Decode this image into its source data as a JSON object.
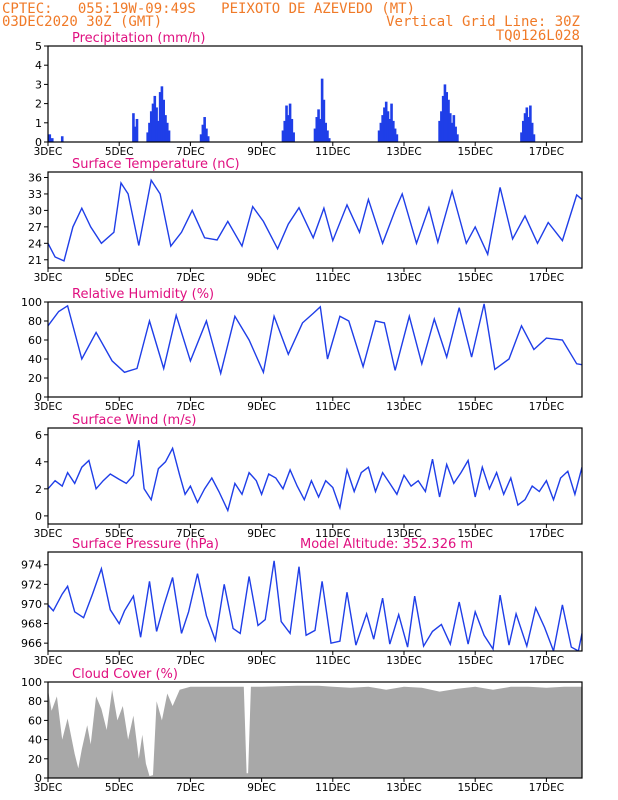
{
  "header": {
    "line1_left": "CPTEC:   055:19W-09:49S   PEIXOTO DE AZEVEDO (MT)",
    "line2_left": "03DEC2020 30Z (GMT)",
    "line2_right": "Vertical Grid Line: 30Z",
    "line3_right": "TQ0126L028"
  },
  "colors": {
    "header": "#f07a28",
    "title": "#e01080",
    "series": "#1f3ee8",
    "cloud": "#a8a8a8",
    "frame": "#000000"
  },
  "x_axis": {
    "start_day": 3,
    "end_day": 18,
    "tick_labels": [
      "3DEC",
      "5DEC",
      "7DEC",
      "9DEC",
      "11DEC",
      "13DEC",
      "15DEC",
      "17DEC"
    ],
    "tick_days": [
      3,
      5,
      7,
      9,
      11,
      13,
      15,
      17
    ]
  },
  "chart_data": [
    {
      "type": "bar",
      "name": "precipitation",
      "title": "Precipitation (mm/h)",
      "ylim": [
        0,
        5
      ],
      "yticks": [
        "0",
        "1",
        "2",
        "3",
        "4",
        "5"
      ],
      "x": [
        3.05,
        3.12,
        3.4,
        5.4,
        5.45,
        5.5,
        5.8,
        5.85,
        5.9,
        5.95,
        6.0,
        6.05,
        6.1,
        6.15,
        6.2,
        6.25,
        6.3,
        6.35,
        6.4,
        7.3,
        7.35,
        7.4,
        7.45,
        7.5,
        9.6,
        9.65,
        9.7,
        9.75,
        9.8,
        9.85,
        9.9,
        10.5,
        10.55,
        10.6,
        10.65,
        10.7,
        10.75,
        10.8,
        10.85,
        10.9,
        12.3,
        12.35,
        12.4,
        12.45,
        12.5,
        12.55,
        12.6,
        12.65,
        12.7,
        12.75,
        12.8,
        14.0,
        14.05,
        14.1,
        14.15,
        14.2,
        14.25,
        14.3,
        14.35,
        14.4,
        14.45,
        14.5,
        16.3,
        16.35,
        16.4,
        16.45,
        16.5,
        16.55,
        16.6,
        16.65
      ],
      "values": [
        0.4,
        0.2,
        0.3,
        1.5,
        0.8,
        1.2,
        0.5,
        1.0,
        1.6,
        2.0,
        2.4,
        1.8,
        1.1,
        2.6,
        2.9,
        2.2,
        1.4,
        1.0,
        0.6,
        0.4,
        0.9,
        1.3,
        0.7,
        0.3,
        0.6,
        1.1,
        1.9,
        1.4,
        2.0,
        1.2,
        0.5,
        0.7,
        1.3,
        1.7,
        1.2,
        3.3,
        2.2,
        1.0,
        0.6,
        0.2,
        0.6,
        1.0,
        1.4,
        1.8,
        2.1,
        1.6,
        1.2,
        2.0,
        1.1,
        0.7,
        0.4,
        1.1,
        1.6,
        2.4,
        3.0,
        2.6,
        2.2,
        1.5,
        1.0,
        1.4,
        0.8,
        0.4,
        0.5,
        1.1,
        1.5,
        1.8,
        1.3,
        1.9,
        1.0,
        0.4
      ]
    },
    {
      "type": "line",
      "name": "surface_temperature",
      "title": "Surface Temperature (nC)",
      "ylim": [
        19.5,
        37
      ],
      "yticks": [
        "21",
        "24",
        "27",
        "30",
        "33",
        "36"
      ],
      "x": [
        3.0,
        3.2,
        3.45,
        3.7,
        3.95,
        4.2,
        4.5,
        4.85,
        5.05,
        5.25,
        5.55,
        5.9,
        6.15,
        6.45,
        6.75,
        7.05,
        7.4,
        7.75,
        8.05,
        8.45,
        8.75,
        9.05,
        9.45,
        9.75,
        10.05,
        10.45,
        10.75,
        11.0,
        11.4,
        11.75,
        12.0,
        12.4,
        12.75,
        12.95,
        13.35,
        13.7,
        13.95,
        14.35,
        14.75,
        15.0,
        15.35,
        15.7,
        16.05,
        16.4,
        16.75,
        17.05,
        17.45,
        17.85,
        18.0
      ],
      "values": [
        24,
        21.5,
        20.8,
        27,
        30.4,
        27,
        24,
        26,
        35,
        33,
        23.6,
        35.5,
        33,
        23.5,
        26,
        30,
        25,
        24.6,
        28,
        23.5,
        30.7,
        28,
        23,
        27.5,
        30.5,
        25,
        30.4,
        24.5,
        31,
        26,
        32,
        24,
        30,
        33,
        24,
        30.5,
        24.2,
        33.5,
        24,
        27,
        22,
        34.2,
        24.8,
        29,
        24,
        27.8,
        24.5,
        32.8,
        32
      ]
    },
    {
      "type": "line",
      "name": "relative_humidity",
      "title": "Relative Humidity (%)",
      "ylim": [
        0,
        100
      ],
      "yticks": [
        "0",
        "20",
        "40",
        "60",
        "80",
        "100"
      ],
      "x": [
        3.0,
        3.3,
        3.55,
        3.95,
        4.35,
        4.8,
        5.15,
        5.5,
        5.85,
        6.25,
        6.6,
        7.0,
        7.45,
        7.85,
        8.25,
        8.65,
        9.05,
        9.35,
        9.75,
        10.15,
        10.45,
        10.65,
        10.85,
        11.2,
        11.45,
        11.85,
        12.2,
        12.45,
        12.75,
        13.15,
        13.5,
        13.85,
        14.2,
        14.55,
        14.9,
        15.25,
        15.55,
        15.95,
        16.3,
        16.65,
        17.0,
        17.45,
        17.85,
        18.0
      ],
      "values": [
        75,
        90,
        96,
        40,
        68,
        38,
        26,
        30,
        80,
        30,
        86,
        38,
        80,
        25,
        85,
        60,
        26,
        85,
        45,
        78,
        88,
        95,
        40,
        85,
        80,
        32,
        80,
        78,
        28,
        85,
        35,
        82,
        42,
        94,
        42,
        98,
        29,
        40,
        75,
        50,
        62,
        60,
        35,
        34
      ]
    },
    {
      "type": "line",
      "name": "surface_wind",
      "title": "Surface Wind (m/s)",
      "ylim": [
        -0.6,
        6.5
      ],
      "yticks": [
        "0",
        "2",
        "4",
        "6"
      ],
      "x": [
        3.0,
        3.2,
        3.4,
        3.55,
        3.75,
        3.95,
        4.15,
        4.35,
        4.55,
        4.75,
        5.0,
        5.2,
        5.4,
        5.55,
        5.7,
        5.9,
        6.1,
        6.3,
        6.5,
        6.7,
        6.85,
        7.0,
        7.2,
        7.4,
        7.6,
        7.8,
        8.05,
        8.25,
        8.45,
        8.65,
        8.85,
        9.0,
        9.2,
        9.4,
        9.6,
        9.8,
        10.0,
        10.2,
        10.4,
        10.6,
        10.8,
        11.0,
        11.2,
        11.4,
        11.6,
        11.8,
        12.0,
        12.2,
        12.4,
        12.6,
        12.8,
        13.0,
        13.2,
        13.4,
        13.6,
        13.8,
        14.0,
        14.2,
        14.4,
        14.6,
        14.8,
        15.0,
        15.2,
        15.4,
        15.6,
        15.8,
        16.0,
        16.2,
        16.4,
        16.6,
        16.8,
        17.0,
        17.2,
        17.4,
        17.6,
        17.8,
        18.0
      ],
      "values": [
        2.0,
        2.6,
        2.2,
        3.2,
        2.4,
        3.6,
        4.1,
        2.0,
        2.6,
        3.1,
        2.7,
        2.4,
        3.0,
        5.6,
        2.0,
        1.2,
        3.5,
        4.0,
        5.0,
        3.0,
        1.6,
        2.2,
        1.0,
        2.0,
        2.8,
        1.8,
        0.4,
        2.4,
        1.6,
        3.2,
        2.6,
        1.6,
        3.1,
        2.8,
        2.0,
        3.4,
        2.2,
        1.2,
        2.6,
        1.4,
        2.6,
        2.1,
        0.6,
        3.4,
        1.8,
        3.2,
        3.6,
        1.8,
        3.2,
        2.4,
        1.6,
        3.0,
        2.2,
        2.6,
        1.8,
        4.2,
        1.4,
        3.8,
        2.4,
        3.2,
        4.1,
        1.4,
        3.6,
        2.0,
        3.2,
        1.6,
        2.8,
        0.8,
        1.2,
        2.2,
        1.8,
        2.6,
        1.2,
        2.8,
        3.3,
        1.6,
        3.6
      ]
    },
    {
      "type": "line",
      "name": "surface_pressure",
      "title": "Surface Pressure (hPa)",
      "annotation": "Model Altitude: 352.326  m",
      "ylim": [
        965.2,
        975.3
      ],
      "yticks": [
        "966",
        "968",
        "970",
        "972",
        "974"
      ],
      "x": [
        3.0,
        3.15,
        3.4,
        3.55,
        3.75,
        4.0,
        4.25,
        4.5,
        4.75,
        5.0,
        5.15,
        5.4,
        5.6,
        5.85,
        6.05,
        6.25,
        6.5,
        6.75,
        6.95,
        7.2,
        7.45,
        7.7,
        7.95,
        8.2,
        8.4,
        8.65,
        8.9,
        9.1,
        9.35,
        9.55,
        9.8,
        10.05,
        10.25,
        10.5,
        10.7,
        10.95,
        11.2,
        11.4,
        11.65,
        11.95,
        12.15,
        12.4,
        12.6,
        12.85,
        13.1,
        13.3,
        13.55,
        13.8,
        14.05,
        14.3,
        14.55,
        14.8,
        15.0,
        15.25,
        15.5,
        15.7,
        15.95,
        16.15,
        16.45,
        16.7,
        16.95,
        17.2,
        17.45,
        17.7,
        17.9,
        18.0
      ],
      "values": [
        969.9,
        969.3,
        971.0,
        971.8,
        969.2,
        968.6,
        971.0,
        973.6,
        969.4,
        968.0,
        969.3,
        970.8,
        966.6,
        972.3,
        967.2,
        969.8,
        972.7,
        967.0,
        969.2,
        973.1,
        968.8,
        966.3,
        972.0,
        967.5,
        967.0,
        972.8,
        967.8,
        968.4,
        974.4,
        968.2,
        967.0,
        973.8,
        966.8,
        967.3,
        972.3,
        966.0,
        966.2,
        971.2,
        965.8,
        969.0,
        966.4,
        970.6,
        965.9,
        968.9,
        965.6,
        970.8,
        965.7,
        967.2,
        967.9,
        965.9,
        970.2,
        965.9,
        969.2,
        966.8,
        965.4,
        970.9,
        965.8,
        969.0,
        965.7,
        969.6,
        967.6,
        965.2,
        969.9,
        965.6,
        965.2,
        967.0
      ]
    },
    {
      "type": "area",
      "name": "cloud_cover",
      "title": "Cloud Cover (%)",
      "ylim": [
        0,
        100
      ],
      "yticks": [
        "0",
        "20",
        "40",
        "60",
        "80",
        "100"
      ],
      "x": [
        3.0,
        3.1,
        3.25,
        3.4,
        3.55,
        3.75,
        3.85,
        3.95,
        4.1,
        4.2,
        4.35,
        4.5,
        4.65,
        4.8,
        4.95,
        5.1,
        5.25,
        5.4,
        5.55,
        5.65,
        5.75,
        5.85,
        5.95,
        6.05,
        6.2,
        6.35,
        6.5,
        6.7,
        7.0,
        7.5,
        8.0,
        8.5,
        8.58,
        8.62,
        8.7,
        9.0,
        10.0,
        10.6,
        11.0,
        11.5,
        12.0,
        12.5,
        13.0,
        13.5,
        14.0,
        14.5,
        15.0,
        15.5,
        16.0,
        16.5,
        17.0,
        17.5,
        18.0
      ],
      "values": [
        92,
        70,
        85,
        40,
        62,
        25,
        10,
        30,
        55,
        35,
        85,
        72,
        50,
        92,
        60,
        75,
        40,
        65,
        20,
        45,
        15,
        2,
        3,
        80,
        60,
        88,
        75,
        92,
        95,
        95,
        95,
        95,
        5,
        5,
        95,
        95,
        96,
        96,
        95,
        94,
        95,
        92,
        95,
        94,
        90,
        93,
        95,
        92,
        95,
        95,
        94,
        95,
        95
      ]
    }
  ]
}
